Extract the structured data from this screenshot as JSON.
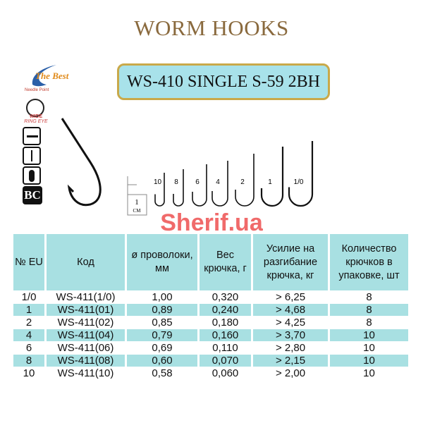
{
  "header": {
    "title": "WORM HOOKS",
    "model": "WS-410 SINGLE S-59 2BH"
  },
  "logo": {
    "text": "The Best",
    "subtext": "Needle Point"
  },
  "features": {
    "eye_label": "WIDE",
    "eye_sub": "RING EYE",
    "coating": "BC"
  },
  "scale": {
    "label_num": "1",
    "label_unit": "CM"
  },
  "hook_sizes": [
    "10",
    "8",
    "6",
    "4",
    "2",
    "1",
    "1/0"
  ],
  "watermark": "Sherif.ua",
  "table": {
    "headers": [
      "№ EU",
      "Код",
      "ø проволоки, мм",
      "Вес крючка, г",
      "Усилие на разгибание крючка, кг",
      "Количество крючков в упаковке, шт"
    ],
    "rows": [
      [
        "1/0",
        "WS-411(1/0)",
        "1,00",
        "0,320",
        "> 6,25",
        "8"
      ],
      [
        "1",
        "WS-411(01)",
        "0,89",
        "0,240",
        "> 4,68",
        "8"
      ],
      [
        "2",
        "WS-411(02)",
        "0,85",
        "0,180",
        "> 4,25",
        "8"
      ],
      [
        "4",
        "WS-411(04)",
        "0,79",
        "0,160",
        "> 3,70",
        "10"
      ],
      [
        "6",
        "WS-411(06)",
        "0,69",
        "0,110",
        "> 2,80",
        "10"
      ],
      [
        "8",
        "WS-411(08)",
        "0,60",
        "0,070",
        "> 2,15",
        "10"
      ],
      [
        "10",
        "WS-411(10)",
        "0,58",
        "0,060",
        "> 2,00",
        "10"
      ]
    ]
  },
  "colors": {
    "title": "#8a6a3e",
    "box_fill": "#a8e2ea",
    "box_border": "#c9a94a",
    "table_fill": "#a8e0e2",
    "watermark": "#ef5a5a"
  }
}
